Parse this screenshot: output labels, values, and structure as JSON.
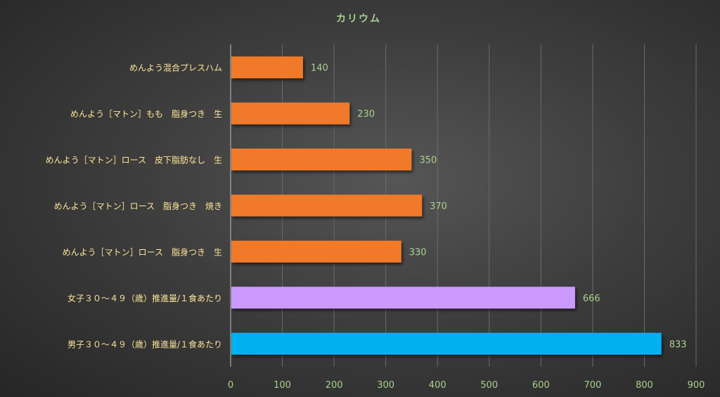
{
  "chart_data": {
    "type": "bar",
    "orientation": "horizontal",
    "title": "カリウム",
    "categories": [
      "めんよう混合プレスハム",
      "めんよう［マトン］もも　脂身つき　生",
      "めんよう［マトン］ロース　皮下脂肪なし　生",
      "めんよう［マトン］ロース　脂身つき　焼き",
      "めんよう［マトン］ロース　脂身つき　生",
      "女子３０～４９（歳）推進量/１食あたり",
      "男子３０～４９（歳）推進量/１食あたり"
    ],
    "values": [
      140,
      230,
      350,
      370,
      330,
      666,
      833
    ],
    "bar_colors": [
      "#f07a2a",
      "#f07a2a",
      "#f07a2a",
      "#f07a2a",
      "#f07a2a",
      "#cc99ff",
      "#00b0f0"
    ],
    "xlim": [
      0,
      900
    ],
    "xticks": [
      0,
      100,
      200,
      300,
      400,
      500,
      600,
      700,
      800,
      900
    ],
    "grid": true,
    "legend": "none",
    "colors": {
      "title": "#a9d18e",
      "category_label": "#ffe699",
      "tick_label": "#a9d18e",
      "data_label": "#a9d18e",
      "gridline": "#6b6b6b",
      "axis": "#bfbfbf"
    }
  }
}
